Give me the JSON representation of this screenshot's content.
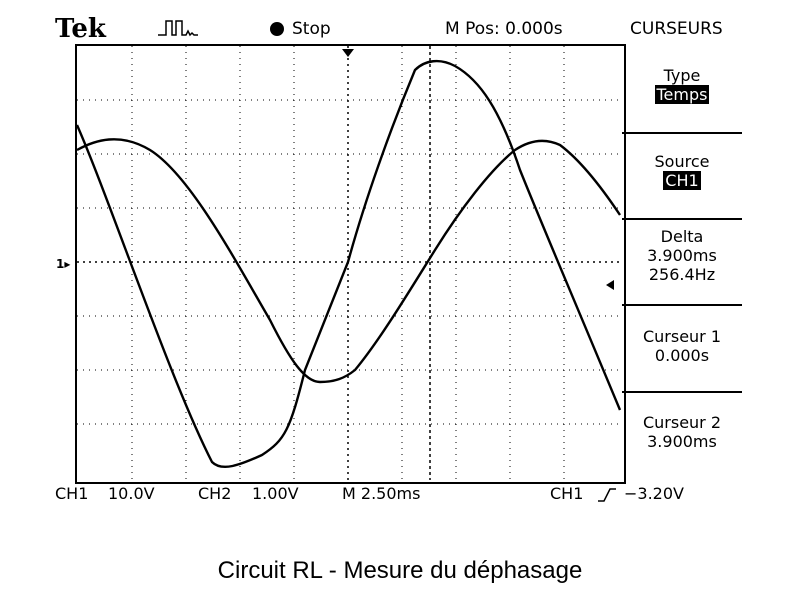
{
  "header": {
    "brand": "Tek",
    "status": "Stop",
    "m_pos": "M Pos: 0.000s",
    "menu_title": "CURSEURS"
  },
  "menu": {
    "type_label": "Type",
    "type_value": "Temps",
    "source_label": "Source",
    "source_value": "CH1",
    "delta_label": "Delta",
    "delta_time": "3.900ms",
    "delta_freq": "256.4Hz",
    "cursor1_label": "Curseur 1",
    "cursor1_value": "0.000s",
    "cursor2_label": "Curseur 2",
    "cursor2_value": "3.900ms"
  },
  "footer": {
    "ch1": "CH1",
    "ch1_scale": "10.0V",
    "ch2": "CH2",
    "ch2_scale": "1.00V",
    "timebase": "M 2.50ms",
    "trigger_channel": "CH1",
    "trigger_level": "−3.20V"
  },
  "caption": "Circuit RL - Mesure du déphasage",
  "colors": {
    "trace": "#000000",
    "background": "#ffffff"
  }
}
